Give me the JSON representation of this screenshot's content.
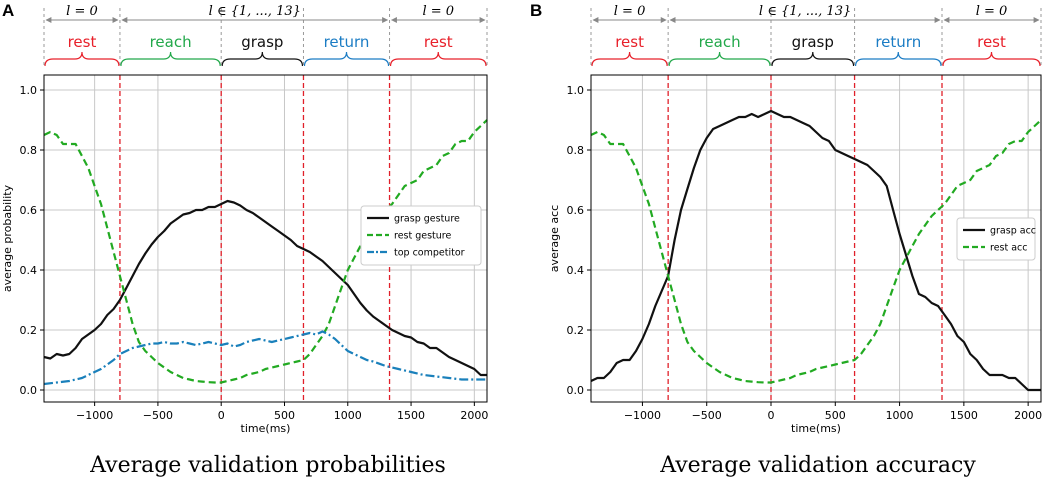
{
  "colors": {
    "rest": "#e8202a",
    "reach": "#22a84a",
    "grasp": "#111111",
    "return": "#1b7cc4",
    "green": "#22aa22",
    "blue": "#1a80bb",
    "vline": "#e0202a"
  },
  "phases": {
    "ell_zero": "l = 0",
    "ell_range": "l ∈ {1, ..., 13}",
    "labels": [
      "rest",
      "reach",
      "grasp",
      "return",
      "rest"
    ]
  },
  "chart_data": [
    {
      "panel": "A",
      "type": "line",
      "title": "Average validation probabilities",
      "xlabel": "time(ms)",
      "ylabel": "average probability",
      "xlim": [
        -1400,
        2100
      ],
      "ylim": [
        -0.04,
        1.05
      ],
      "xticks": [
        -1000,
        -500,
        0,
        500,
        1000,
        1500,
        2000
      ],
      "xtick_labels": [
        "−1000",
        "−500",
        "0",
        "500",
        "1000",
        "1500",
        "2000"
      ],
      "yticks": [
        0.0,
        0.2,
        0.4,
        0.6,
        0.8,
        1.0
      ],
      "ytick_labels": [
        "0.0",
        "0.2",
        "0.4",
        "0.6",
        "0.8",
        "1.0"
      ],
      "phase_boundaries": [
        -800,
        0,
        650,
        1330
      ],
      "grid": true,
      "legend_position": "right",
      "series": [
        {
          "name": "grasp gesture",
          "style": "solid",
          "color": "#111111",
          "x": [
            -1400,
            -1350,
            -1300,
            -1250,
            -1200,
            -1150,
            -1100,
            -1050,
            -1000,
            -950,
            -900,
            -850,
            -800,
            -750,
            -700,
            -650,
            -600,
            -550,
            -500,
            -450,
            -400,
            -350,
            -300,
            -250,
            -200,
            -150,
            -100,
            -50,
            0,
            50,
            100,
            150,
            200,
            250,
            300,
            350,
            400,
            450,
            500,
            550,
            600,
            650,
            700,
            750,
            800,
            850,
            900,
            950,
            1000,
            1050,
            1100,
            1150,
            1200,
            1250,
            1300,
            1350,
            1400,
            1450,
            1500,
            1550,
            1600,
            1650,
            1700,
            1750,
            1800,
            1850,
            1900,
            1950,
            2000,
            2050,
            2100
          ],
          "y": [
            0.11,
            0.105,
            0.12,
            0.115,
            0.12,
            0.14,
            0.17,
            0.185,
            0.2,
            0.22,
            0.25,
            0.27,
            0.3,
            0.34,
            0.38,
            0.42,
            0.455,
            0.485,
            0.51,
            0.53,
            0.555,
            0.57,
            0.585,
            0.59,
            0.6,
            0.6,
            0.61,
            0.61,
            0.62,
            0.63,
            0.625,
            0.615,
            0.6,
            0.59,
            0.575,
            0.56,
            0.545,
            0.53,
            0.515,
            0.5,
            0.48,
            0.47,
            0.46,
            0.445,
            0.43,
            0.41,
            0.39,
            0.37,
            0.35,
            0.32,
            0.29,
            0.265,
            0.245,
            0.23,
            0.215,
            0.2,
            0.19,
            0.18,
            0.175,
            0.16,
            0.155,
            0.14,
            0.14,
            0.125,
            0.11,
            0.1,
            0.09,
            0.08,
            0.07,
            0.05,
            0.05
          ]
        },
        {
          "name": "rest gesture",
          "style": "dashed",
          "color": "#22aa22",
          "x": [
            -1400,
            -1350,
            -1300,
            -1250,
            -1200,
            -1150,
            -1100,
            -1050,
            -1000,
            -950,
            -900,
            -850,
            -800,
            -750,
            -700,
            -650,
            -600,
            -550,
            -500,
            -450,
            -400,
            -350,
            -300,
            -250,
            -200,
            -150,
            -100,
            -50,
            0,
            50,
            100,
            150,
            200,
            250,
            300,
            350,
            400,
            450,
            500,
            550,
            600,
            650,
            700,
            750,
            800,
            850,
            900,
            950,
            1000,
            1050,
            1100,
            1150,
            1200,
            1250,
            1300,
            1350,
            1400,
            1450,
            1500,
            1550,
            1600,
            1650,
            1700,
            1750,
            1800,
            1850,
            1900,
            1950,
            2000,
            2050,
            2100
          ],
          "y": [
            0.85,
            0.86,
            0.85,
            0.82,
            0.82,
            0.82,
            0.78,
            0.74,
            0.68,
            0.62,
            0.54,
            0.46,
            0.38,
            0.3,
            0.22,
            0.16,
            0.13,
            0.11,
            0.09,
            0.075,
            0.06,
            0.05,
            0.04,
            0.035,
            0.03,
            0.028,
            0.026,
            0.025,
            0.025,
            0.03,
            0.035,
            0.04,
            0.05,
            0.055,
            0.06,
            0.07,
            0.075,
            0.08,
            0.085,
            0.09,
            0.095,
            0.1,
            0.12,
            0.15,
            0.18,
            0.22,
            0.28,
            0.34,
            0.4,
            0.44,
            0.48,
            0.52,
            0.55,
            0.58,
            0.6,
            0.62,
            0.65,
            0.68,
            0.69,
            0.7,
            0.73,
            0.74,
            0.75,
            0.78,
            0.79,
            0.82,
            0.83,
            0.83,
            0.86,
            0.88,
            0.9
          ]
        },
        {
          "name": "top competitor",
          "style": "dashdot",
          "color": "#1a80bb",
          "x": [
            -1400,
            -1300,
            -1200,
            -1100,
            -1000,
            -950,
            -900,
            -850,
            -800,
            -750,
            -700,
            -650,
            -600,
            -550,
            -500,
            -450,
            -400,
            -350,
            -300,
            -250,
            -200,
            -150,
            -100,
            -50,
            0,
            50,
            100,
            150,
            200,
            250,
            300,
            350,
            400,
            450,
            500,
            550,
            600,
            650,
            700,
            750,
            800,
            850,
            900,
            950,
            1000,
            1050,
            1100,
            1150,
            1200,
            1300,
            1400,
            1500,
            1600,
            1700,
            1800,
            1900,
            2000,
            2100
          ],
          "y": [
            0.02,
            0.025,
            0.03,
            0.04,
            0.06,
            0.07,
            0.085,
            0.1,
            0.12,
            0.13,
            0.14,
            0.145,
            0.15,
            0.155,
            0.155,
            0.16,
            0.155,
            0.155,
            0.16,
            0.155,
            0.15,
            0.155,
            0.16,
            0.155,
            0.15,
            0.155,
            0.145,
            0.15,
            0.16,
            0.165,
            0.17,
            0.165,
            0.16,
            0.165,
            0.17,
            0.175,
            0.18,
            0.185,
            0.19,
            0.185,
            0.195,
            0.185,
            0.17,
            0.15,
            0.13,
            0.12,
            0.11,
            0.1,
            0.095,
            0.08,
            0.07,
            0.06,
            0.05,
            0.045,
            0.04,
            0.035,
            0.035,
            0.035
          ]
        }
      ]
    },
    {
      "panel": "B",
      "type": "line",
      "title": "Average validation accuracy",
      "xlabel": "time(ms)",
      "ylabel": "average acc",
      "xlim": [
        -1400,
        2100
      ],
      "ylim": [
        -0.04,
        1.05
      ],
      "xticks": [
        -1000,
        -500,
        0,
        500,
        1000,
        1500,
        2000
      ],
      "xtick_labels": [
        "−1000",
        "−500",
        "0",
        "500",
        "1000",
        "1500",
        "2000"
      ],
      "yticks": [
        0.0,
        0.2,
        0.4,
        0.6,
        0.8,
        1.0
      ],
      "ytick_labels": [
        "0.0",
        "0.2",
        "0.4",
        "0.6",
        "0.8",
        "1.0"
      ],
      "phase_boundaries": [
        -800,
        0,
        650,
        1330
      ],
      "grid": true,
      "legend_position": "right",
      "series": [
        {
          "name": "grasp acc",
          "style": "solid",
          "color": "#111111",
          "x": [
            -1400,
            -1350,
            -1300,
            -1250,
            -1200,
            -1150,
            -1100,
            -1050,
            -1000,
            -950,
            -900,
            -850,
            -800,
            -750,
            -700,
            -650,
            -600,
            -550,
            -500,
            -450,
            -400,
            -350,
            -300,
            -250,
            -200,
            -150,
            -100,
            -50,
            0,
            50,
            100,
            150,
            200,
            250,
            300,
            350,
            400,
            450,
            500,
            550,
            600,
            650,
            700,
            750,
            800,
            850,
            900,
            950,
            1000,
            1050,
            1100,
            1150,
            1200,
            1250,
            1300,
            1350,
            1400,
            1450,
            1500,
            1550,
            1600,
            1650,
            1700,
            1750,
            1800,
            1850,
            1900,
            1950,
            2000,
            2050,
            2100
          ],
          "y": [
            0.03,
            0.04,
            0.04,
            0.06,
            0.09,
            0.1,
            0.1,
            0.13,
            0.17,
            0.22,
            0.28,
            0.33,
            0.38,
            0.5,
            0.6,
            0.67,
            0.74,
            0.8,
            0.84,
            0.87,
            0.88,
            0.89,
            0.9,
            0.91,
            0.91,
            0.92,
            0.91,
            0.92,
            0.93,
            0.92,
            0.91,
            0.91,
            0.9,
            0.89,
            0.88,
            0.86,
            0.84,
            0.83,
            0.8,
            0.79,
            0.78,
            0.77,
            0.76,
            0.75,
            0.73,
            0.71,
            0.68,
            0.6,
            0.52,
            0.45,
            0.38,
            0.32,
            0.31,
            0.29,
            0.28,
            0.25,
            0.22,
            0.18,
            0.16,
            0.12,
            0.1,
            0.07,
            0.05,
            0.05,
            0.05,
            0.04,
            0.04,
            0.02,
            0.0,
            0.0,
            0.0
          ]
        },
        {
          "name": "rest acc",
          "style": "dashed",
          "color": "#22aa22",
          "x": [
            -1400,
            -1350,
            -1300,
            -1250,
            -1200,
            -1150,
            -1100,
            -1050,
            -1000,
            -950,
            -900,
            -850,
            -800,
            -750,
            -700,
            -650,
            -600,
            -550,
            -500,
            -450,
            -400,
            -350,
            -300,
            -250,
            -200,
            -150,
            -100,
            -50,
            0,
            50,
            100,
            150,
            200,
            250,
            300,
            350,
            400,
            450,
            500,
            550,
            600,
            650,
            700,
            750,
            800,
            850,
            900,
            950,
            1000,
            1050,
            1100,
            1150,
            1200,
            1250,
            1300,
            1350,
            1400,
            1450,
            1500,
            1550,
            1600,
            1650,
            1700,
            1750,
            1800,
            1850,
            1900,
            1950,
            2000,
            2050,
            2100
          ],
          "y": [
            0.85,
            0.86,
            0.85,
            0.82,
            0.82,
            0.82,
            0.78,
            0.74,
            0.68,
            0.62,
            0.54,
            0.46,
            0.38,
            0.3,
            0.22,
            0.16,
            0.13,
            0.11,
            0.09,
            0.075,
            0.06,
            0.05,
            0.04,
            0.035,
            0.03,
            0.028,
            0.026,
            0.025,
            0.025,
            0.03,
            0.035,
            0.04,
            0.05,
            0.055,
            0.06,
            0.07,
            0.075,
            0.08,
            0.085,
            0.09,
            0.095,
            0.1,
            0.12,
            0.15,
            0.18,
            0.22,
            0.28,
            0.34,
            0.4,
            0.44,
            0.48,
            0.52,
            0.55,
            0.58,
            0.6,
            0.62,
            0.65,
            0.68,
            0.69,
            0.7,
            0.73,
            0.74,
            0.75,
            0.78,
            0.79,
            0.82,
            0.83,
            0.83,
            0.86,
            0.88,
            0.9
          ]
        }
      ]
    }
  ]
}
